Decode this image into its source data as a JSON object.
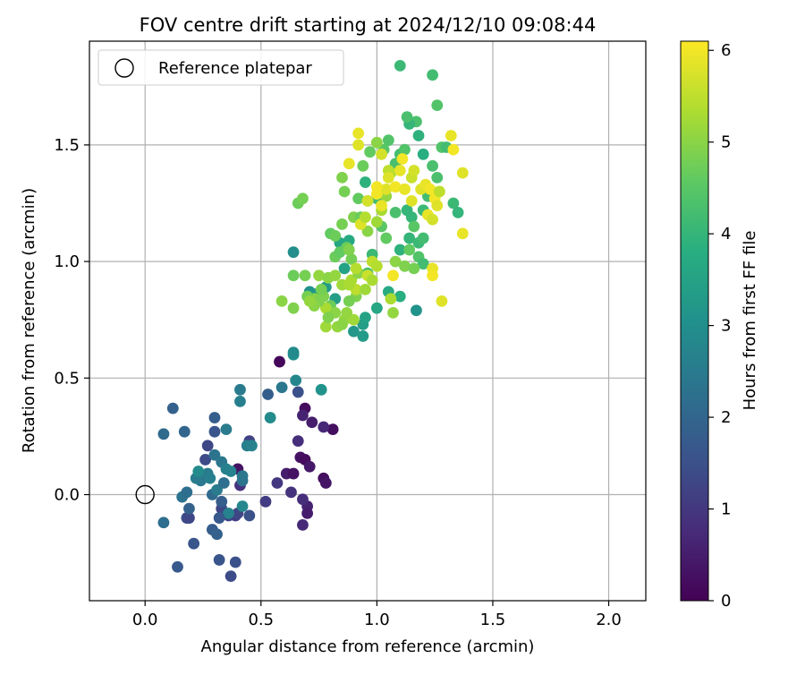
{
  "chart_data": {
    "type": "scatter",
    "title": "FOV centre drift starting at 2024/12/10 09:08:44",
    "xlabel": "Angular distance from reference (arcmin)",
    "ylabel": "Rotation from reference (arcmin)",
    "xlim": [
      -0.24,
      2.16
    ],
    "ylim": [
      -0.455,
      1.945
    ],
    "xticks": [
      0.0,
      0.5,
      1.0,
      1.5,
      2.0
    ],
    "xtick_labels": [
      "0.0",
      "0.5",
      "1.0",
      "1.5",
      "2.0"
    ],
    "yticks": [
      0.0,
      0.5,
      1.0,
      1.5
    ],
    "ytick_labels": [
      "0.0",
      "0.5",
      "1.0",
      "1.5"
    ],
    "grid": true,
    "legend": {
      "placement": "top-left",
      "entries": [
        "Reference platepar"
      ]
    },
    "reference_point": {
      "x": 0.0,
      "y": 0.0,
      "marker": "open-circle"
    },
    "colorbar": {
      "label": "Hours from first FF file",
      "range": [
        0,
        6.1
      ],
      "ticks": [
        0,
        1,
        2,
        3,
        4,
        5,
        6
      ],
      "tick_labels": [
        "0",
        "1",
        "2",
        "3",
        "4",
        "5",
        "6"
      ],
      "colormap": "viridis"
    },
    "points": [
      [
        0.58,
        0.57,
        0.1
      ],
      [
        0.69,
        0.37,
        0.2
      ],
      [
        0.81,
        0.28,
        0.25
      ],
      [
        0.67,
        0.16,
        0.3
      ],
      [
        0.69,
        0.15,
        0.2
      ],
      [
        0.71,
        0.12,
        0.4
      ],
      [
        0.61,
        0.09,
        0.5
      ],
      [
        0.64,
        0.09,
        0.3
      ],
      [
        0.77,
        0.07,
        0.25
      ],
      [
        0.78,
        0.05,
        0.35
      ],
      [
        0.7,
        -0.05,
        0.6
      ],
      [
        0.7,
        -0.08,
        0.5
      ],
      [
        0.68,
        -0.13,
        0.7
      ],
      [
        0.66,
        0.23,
        0.8
      ],
      [
        0.68,
        0.34,
        0.6
      ],
      [
        0.72,
        0.31,
        0.5
      ],
      [
        0.77,
        0.29,
        0.7
      ],
      [
        0.63,
        0.01,
        0.9
      ],
      [
        0.68,
        -0.02,
        0.8
      ],
      [
        0.57,
        0.05,
        1.0
      ],
      [
        0.52,
        -0.03,
        1.1
      ],
      [
        0.45,
        0.23,
        1.2
      ],
      [
        0.4,
        0.11,
        0.3
      ],
      [
        0.41,
        0.04,
        0.9
      ],
      [
        0.39,
        -0.09,
        1.1
      ],
      [
        0.36,
        -0.09,
        1.2
      ],
      [
        0.4,
        -0.08,
        1.3
      ],
      [
        0.45,
        -0.09,
        1.5
      ],
      [
        0.33,
        -0.06,
        1.3
      ],
      [
        0.37,
        -0.35,
        1.4
      ],
      [
        0.39,
        -0.29,
        1.5
      ],
      [
        0.32,
        -0.28,
        1.6
      ],
      [
        0.14,
        -0.31,
        1.7
      ],
      [
        0.21,
        -0.21,
        1.6
      ],
      [
        0.18,
        -0.1,
        1.4
      ],
      [
        0.19,
        -0.1,
        1.3
      ],
      [
        0.29,
        -0.15,
        1.8
      ],
      [
        0.31,
        -0.17,
        1.9
      ],
      [
        0.19,
        -0.06,
        1.9
      ],
      [
        0.26,
        0.15,
        1.4
      ],
      [
        0.27,
        0.21,
        1.3
      ],
      [
        0.3,
        0.27,
        1.6
      ],
      [
        0.3,
        0.33,
        1.8
      ],
      [
        0.12,
        0.37,
        1.9
      ],
      [
        0.17,
        0.27,
        2.0
      ],
      [
        0.08,
        0.26,
        2.1
      ],
      [
        0.08,
        -0.12,
        2.2
      ],
      [
        0.16,
        -0.01,
        2.3
      ],
      [
        0.18,
        0.01,
        2.2
      ],
      [
        0.24,
        0.06,
        2.4
      ],
      [
        0.27,
        0.09,
        2.5
      ],
      [
        0.29,
        0.0,
        2.1
      ],
      [
        0.3,
        0.17,
        2.3
      ],
      [
        0.33,
        0.14,
        2.4
      ],
      [
        0.35,
        0.11,
        2.6
      ],
      [
        0.37,
        0.1,
        2.7
      ],
      [
        0.31,
        0.02,
        2.5
      ],
      [
        0.34,
        0.05,
        2.2
      ],
      [
        0.42,
        0.06,
        2.3
      ],
      [
        0.42,
        0.08,
        2.4
      ],
      [
        0.44,
        0.21,
        2.6
      ],
      [
        0.46,
        0.21,
        2.7
      ],
      [
        0.35,
        0.28,
        2.5
      ],
      [
        0.41,
        0.4,
        2.6
      ],
      [
        0.41,
        0.45,
        2.5
      ],
      [
        0.36,
        -0.08,
        2.7
      ],
      [
        0.42,
        -0.05,
        2.8
      ],
      [
        0.53,
        0.43,
        1.8
      ],
      [
        0.59,
        0.46,
        2.4
      ],
      [
        0.54,
        0.33,
        2.9
      ],
      [
        0.64,
        0.6,
        3.0
      ],
      [
        0.64,
        0.61,
        2.9
      ],
      [
        0.65,
        0.49,
        2.8
      ],
      [
        0.66,
        0.44,
        1.5
      ],
      [
        0.76,
        0.45,
        3.1
      ],
      [
        0.32,
        -0.1,
        1.7
      ],
      [
        0.33,
        -0.03,
        1.8
      ],
      [
        0.22,
        0.07,
        2.5
      ],
      [
        0.28,
        0.07,
        2.6
      ],
      [
        0.23,
        0.1,
        2.9
      ],
      [
        0.64,
        1.04,
        3.0
      ],
      [
        0.71,
        0.87,
        3.1
      ],
      [
        0.73,
        0.86,
        3.2
      ],
      [
        0.78,
        0.89,
        3.3
      ],
      [
        0.82,
        0.84,
        3.4
      ],
      [
        0.86,
        0.97,
        3.5
      ],
      [
        0.84,
        1.08,
        3.6
      ],
      [
        0.88,
        1.09,
        3.7
      ],
      [
        0.9,
        0.7,
        3.2
      ],
      [
        0.94,
        0.68,
        3.3
      ],
      [
        0.94,
        0.73,
        3.4
      ],
      [
        0.95,
        0.76,
        3.5
      ],
      [
        1.0,
        0.8,
        3.6
      ],
      [
        1.05,
        0.87,
        3.7
      ],
      [
        1.1,
        0.85,
        3.8
      ],
      [
        1.17,
        0.79,
        3.1
      ],
      [
        1.1,
        1.05,
        3.9
      ],
      [
        1.14,
        1.1,
        4.0
      ],
      [
        1.18,
        1.08,
        4.1
      ],
      [
        1.2,
        1.1,
        4.2
      ],
      [
        1.15,
        1.19,
        4.0
      ],
      [
        1.2,
        1.22,
        4.1
      ],
      [
        1.22,
        1.28,
        4.2
      ],
      [
        1.26,
        1.36,
        4.3
      ],
      [
        1.28,
        1.49,
        4.4
      ],
      [
        1.3,
        1.49,
        4.2
      ],
      [
        1.33,
        1.25,
        4.1
      ],
      [
        1.35,
        1.21,
        4.0
      ],
      [
        1.24,
        1.41,
        4.3
      ],
      [
        1.24,
        1.8,
        4.2
      ],
      [
        1.26,
        1.67,
        4.4
      ],
      [
        1.1,
        1.84,
        4.1
      ],
      [
        1.17,
        1.6,
        4.3
      ],
      [
        1.14,
        1.59,
        4.0
      ],
      [
        1.18,
        1.54,
        3.9
      ],
      [
        1.2,
        1.46,
        3.8
      ],
      [
        1.13,
        1.62,
        4.3
      ],
      [
        1.0,
        1.27,
        4.2
      ],
      [
        0.96,
        1.26,
        4.1
      ],
      [
        0.95,
        1.34,
        3.9
      ],
      [
        1.06,
        1.39,
        4.0
      ],
      [
        1.08,
        1.42,
        4.3
      ],
      [
        1.1,
        1.46,
        4.2
      ],
      [
        1.12,
        1.48,
        4.4
      ],
      [
        1.03,
        1.48,
        4.5
      ],
      [
        1.05,
        1.52,
        4.4
      ],
      [
        1.08,
        1.21,
        4.3
      ],
      [
        1.13,
        1.22,
        4.0
      ],
      [
        1.16,
        1.15,
        4.5
      ],
      [
        1.14,
        1.05,
        4.6
      ],
      [
        1.18,
        1.02,
        4.4
      ],
      [
        1.2,
        0.99,
        4.2
      ],
      [
        0.96,
        0.95,
        4.3
      ],
      [
        0.98,
        1.03,
        4.1
      ],
      [
        1.02,
        1.15,
        4.5
      ],
      [
        1.04,
        1.1,
        4.6
      ],
      [
        0.87,
        1.06,
        4.7
      ],
      [
        0.89,
        1.01,
        4.8
      ],
      [
        0.91,
        0.85,
        4.9
      ],
      [
        0.88,
        0.83,
        4.8
      ],
      [
        0.8,
        0.81,
        4.7
      ],
      [
        0.77,
        0.85,
        4.9
      ],
      [
        0.73,
        0.84,
        5.0
      ],
      [
        0.7,
        0.85,
        4.8
      ],
      [
        0.64,
        0.8,
        4.9
      ],
      [
        0.59,
        0.83,
        5.0
      ],
      [
        0.64,
        0.94,
        4.7
      ],
      [
        0.69,
        0.94,
        4.8
      ],
      [
        0.75,
        0.94,
        5.1
      ],
      [
        0.79,
        0.93,
        5.0
      ],
      [
        0.82,
        0.94,
        5.1
      ],
      [
        0.85,
        0.9,
        5.2
      ],
      [
        0.89,
        0.92,
        5.3
      ],
      [
        0.92,
        0.95,
        5.0
      ],
      [
        0.83,
        0.72,
        5.1
      ],
      [
        0.78,
        0.72,
        5.2
      ],
      [
        0.78,
        0.8,
        5.3
      ],
      [
        0.75,
        0.83,
        4.9
      ],
      [
        0.82,
        0.78,
        5.0
      ],
      [
        0.86,
        0.75,
        5.1
      ],
      [
        0.8,
        1.12,
        4.6
      ],
      [
        0.82,
        1.11,
        4.7
      ],
      [
        0.85,
        1.16,
        4.8
      ],
      [
        0.9,
        1.19,
        4.9
      ],
      [
        0.92,
        1.27,
        4.6
      ],
      [
        0.93,
        1.19,
        4.7
      ],
      [
        0.96,
        1.13,
        5.0
      ],
      [
        1.0,
        1.17,
        5.2
      ],
      [
        1.02,
        1.22,
        5.3
      ],
      [
        1.04,
        1.28,
        5.1
      ],
      [
        0.86,
        1.3,
        4.8
      ],
      [
        0.85,
        1.36,
        4.9
      ],
      [
        0.94,
        1.41,
        4.7
      ],
      [
        0.97,
        1.47,
        4.6
      ],
      [
        0.66,
        1.25,
        4.7
      ],
      [
        0.68,
        1.27,
        4.8
      ],
      [
        1.0,
        1.51,
        5.2
      ],
      [
        1.06,
        1.38,
        5.3
      ],
      [
        0.92,
        1.5,
        5.8
      ],
      [
        0.92,
        1.55,
        5.9
      ],
      [
        1.02,
        1.46,
        5.7
      ],
      [
        1.0,
        1.51,
        5.0
      ],
      [
        1.11,
        1.44,
        6.0
      ],
      [
        1.1,
        1.39,
        5.9
      ],
      [
        1.05,
        1.39,
        5.5
      ],
      [
        1.05,
        1.36,
        5.8
      ],
      [
        1.15,
        1.36,
        5.6
      ],
      [
        1.16,
        1.39,
        5.7
      ],
      [
        1.19,
        1.31,
        5.8
      ],
      [
        1.21,
        1.33,
        5.9
      ],
      [
        1.23,
        1.31,
        6.0
      ],
      [
        1.27,
        1.3,
        5.8
      ],
      [
        1.25,
        1.27,
        6.0
      ],
      [
        1.22,
        1.2,
        5.9
      ],
      [
        1.24,
        1.18,
        5.7
      ],
      [
        1.26,
        1.24,
        5.8
      ],
      [
        1.27,
        1.3,
        5.5
      ],
      [
        1.32,
        1.54,
        5.9
      ],
      [
        1.33,
        1.48,
        6.0
      ],
      [
        1.37,
        1.38,
        5.8
      ],
      [
        1.37,
        1.12,
        5.9
      ],
      [
        1.24,
        0.97,
        5.9
      ],
      [
        1.24,
        0.94,
        6.0
      ],
      [
        1.28,
        0.83,
        5.8
      ],
      [
        1.07,
        0.94,
        6.0
      ],
      [
        1.02,
        1.24,
        5.9
      ],
      [
        1.0,
        1.29,
        6.0
      ],
      [
        1.04,
        1.31,
        5.8
      ],
      [
        1.08,
        1.32,
        6.0
      ],
      [
        1.12,
        1.31,
        5.9
      ],
      [
        1.15,
        1.26,
        5.8
      ],
      [
        1.12,
        1.31,
        5.9
      ],
      [
        1.0,
        1.32,
        6.0
      ],
      [
        0.96,
        1.26,
        5.7
      ],
      [
        0.88,
        1.42,
        5.9
      ],
      [
        0.93,
        1.16,
        5.8
      ],
      [
        0.95,
        1.19,
        5.4
      ],
      [
        0.98,
        1.0,
        5.5
      ],
      [
        1.0,
        0.98,
        5.4
      ],
      [
        0.96,
        0.94,
        5.6
      ],
      [
        0.91,
        0.88,
        5.5
      ],
      [
        0.88,
        0.9,
        5.3
      ],
      [
        0.91,
        0.97,
        5.4
      ],
      [
        0.95,
        0.88,
        5.2
      ],
      [
        0.98,
        0.92,
        5.3
      ],
      [
        1.07,
        0.78,
        5.1
      ],
      [
        1.06,
        0.84,
        5.3
      ],
      [
        1.08,
        1.0,
        5.0
      ],
      [
        1.12,
        0.98,
        4.9
      ],
      [
        1.16,
        0.97,
        4.8
      ],
      [
        0.9,
        0.75,
        5.2
      ],
      [
        0.87,
        0.78,
        5.1
      ],
      [
        0.85,
        0.73,
        5.0
      ],
      [
        0.79,
        0.76,
        4.9
      ],
      [
        0.73,
        0.81,
        5.0
      ],
      [
        0.71,
        0.83,
        5.1
      ],
      [
        0.76,
        0.88,
        4.8
      ],
      [
        0.82,
        1.02,
        4.7
      ],
      [
        0.84,
        1.04,
        4.6
      ],
      [
        0.88,
        1.05,
        4.9
      ]
    ]
  }
}
